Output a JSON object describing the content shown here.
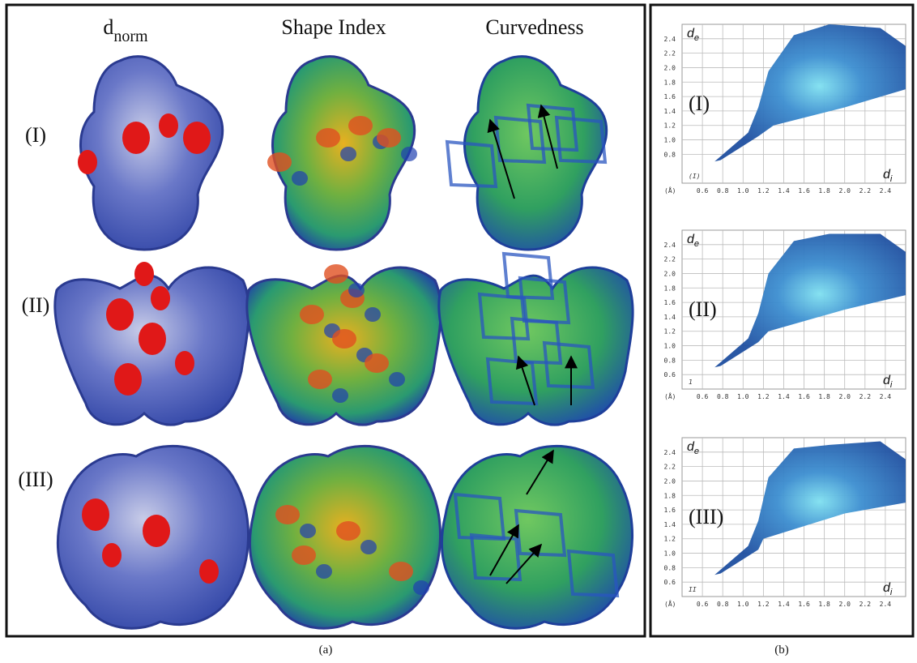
{
  "panel_a": {
    "caption": "(a)",
    "columns": [
      {
        "main": "d",
        "sub": "norm"
      },
      {
        "main": "Shape Index"
      },
      {
        "main": "Curvedness"
      }
    ],
    "rows": [
      "(I)",
      "(II)",
      "(III)"
    ]
  },
  "panel_b": {
    "caption": "(b)",
    "y_axis": {
      "main": "d",
      "sub": "e"
    },
    "x_axis": {
      "main": "d",
      "sub": "i"
    },
    "unit": "(Å)",
    "xticks": [
      "0.6",
      "0.8",
      "1.0",
      "1.2",
      "1.4",
      "1.6",
      "1.8",
      "2.0",
      "2.2",
      "2.4"
    ],
    "plots": [
      {
        "label": "(I)",
        "corner": "(I)",
        "yticks": [
          "0.8",
          "1.0",
          "1.2",
          "1.4",
          "1.6",
          "1.8",
          "2.0",
          "2.2",
          "2.4"
        ]
      },
      {
        "label": "(II)",
        "corner": "1",
        "yticks": [
          "0.6",
          "0.8",
          "1.0",
          "1.2",
          "1.4",
          "1.6",
          "1.8",
          "2.0",
          "2.2",
          "2.4"
        ]
      },
      {
        "label": "(III)",
        "corner": "II",
        "yticks": [
          "0.6",
          "0.8",
          "1.0",
          "1.2",
          "1.4",
          "1.6",
          "1.8",
          "2.0",
          "2.2",
          "2.4"
        ]
      }
    ]
  }
}
